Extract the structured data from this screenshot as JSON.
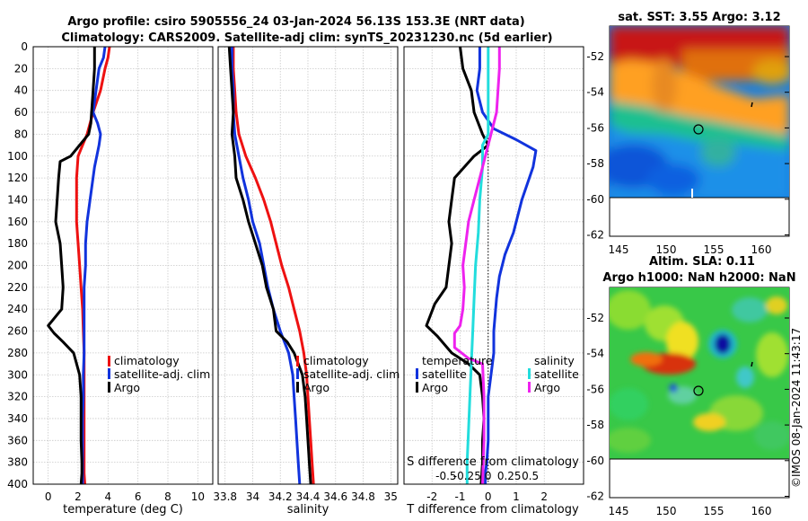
{
  "figure": {
    "title_line1": "Argo profile: csiro 5905556_24 03-Jan-2024 56.13S 153.3E (NRT data)",
    "title_line2": "Climatology: CARS2009. Satellite-adj clim: synTS_20231230.nc (5d earlier)",
    "credit": "©IMOS 08-Jan-2024 11:43:17"
  },
  "colors": {
    "climatology": "#ee1111",
    "satellite": "#1133dd",
    "argo": "#000000",
    "sal_satellite": "#22dddd",
    "sal_argo": "#ee22ee"
  },
  "chart_data": [
    {
      "type": "line",
      "id": "temperature",
      "xlabel": "temperature (deg C)",
      "ylabel": "",
      "xlim": [
        -1,
        11
      ],
      "ylim": [
        400,
        0
      ],
      "xticks": [
        "0",
        "2",
        "4",
        "6",
        "8",
        "10"
      ],
      "yticks": [
        "0",
        "20",
        "40",
        "60",
        "80",
        "100",
        "120",
        "140",
        "160",
        "180",
        "200",
        "220",
        "240",
        "260",
        "280",
        "300",
        "320",
        "340",
        "360",
        "380",
        "400"
      ],
      "legend": [
        "climatology",
        "satellite-adj. clim",
        "Argo"
      ],
      "series": [
        {
          "name": "climatology",
          "color": "#ee1111",
          "x": [
            4.1,
            4.0,
            3.8,
            3.5,
            3.0,
            2.6,
            2.3,
            2.0,
            1.9,
            1.9,
            1.9,
            2.0,
            2.1,
            2.2,
            2.3,
            2.35,
            2.4,
            2.4,
            2.4,
            2.4,
            2.4,
            2.4,
            2.4,
            2.45
          ],
          "y": [
            0,
            10,
            20,
            40,
            60,
            80,
            90,
            100,
            120,
            140,
            160,
            180,
            200,
            220,
            240,
            260,
            280,
            300,
            320,
            340,
            360,
            380,
            390,
            400
          ]
        },
        {
          "name": "satellite-adj. clim",
          "color": "#1133dd",
          "x": [
            3.8,
            3.7,
            3.4,
            3.2,
            3.0,
            3.3,
            3.5,
            3.4,
            3.1,
            2.8,
            2.6,
            2.5,
            2.5,
            2.4,
            2.4,
            2.4,
            2.4,
            2.35,
            2.35,
            2.3,
            2.3,
            2.3,
            2.3,
            2.3
          ],
          "y": [
            0,
            10,
            20,
            40,
            60,
            70,
            80,
            90,
            110,
            140,
            160,
            180,
            200,
            220,
            240,
            260,
            280,
            300,
            320,
            340,
            360,
            380,
            390,
            400
          ]
        },
        {
          "name": "Argo",
          "color": "#000000",
          "x": [
            3.1,
            3.1,
            3.0,
            2.9,
            2.85,
            2.7,
            2.4,
            2.1,
            1.5,
            0.8,
            0.7,
            0.6,
            0.5,
            0.8,
            0.9,
            1.0,
            0.9,
            0.3,
            0.0,
            0.4,
            1.0,
            1.7,
            2.1,
            2.2,
            2.2,
            2.2,
            2.25,
            2.25,
            2.2
          ],
          "y": [
            0,
            20,
            40,
            60,
            70,
            80,
            85,
            90,
            100,
            105,
            120,
            140,
            160,
            180,
            200,
            220,
            240,
            250,
            255,
            262,
            270,
            280,
            300,
            320,
            340,
            360,
            380,
            390,
            400
          ]
        }
      ]
    },
    {
      "type": "line",
      "id": "salinity",
      "xlabel": "salinity",
      "ylabel": "",
      "xlim": [
        33.75,
        35.05
      ],
      "xticks": [
        "33.8",
        "34",
        "34.2",
        "34.4",
        "34.6",
        "34.8",
        "35"
      ],
      "legend": [
        "climatology",
        "satellite-adj. clim",
        "Argo"
      ],
      "series": [
        {
          "name": "climatology",
          "color": "#ee1111",
          "x": [
            33.86,
            33.86,
            33.87,
            33.88,
            33.9,
            33.95,
            34.02,
            34.08,
            34.13,
            34.17,
            34.21,
            34.26,
            34.3,
            34.34,
            34.37,
            34.39,
            34.4,
            34.41,
            34.42,
            34.43,
            34.44
          ],
          "y": [
            0,
            20,
            40,
            60,
            80,
            100,
            120,
            140,
            160,
            180,
            200,
            220,
            240,
            260,
            280,
            300,
            320,
            340,
            360,
            380,
            400
          ]
        },
        {
          "name": "satellite-adj. clim",
          "color": "#1133dd",
          "x": [
            33.85,
            33.85,
            33.86,
            33.86,
            33.87,
            33.9,
            33.93,
            33.97,
            34.0,
            34.05,
            34.08,
            34.11,
            34.15,
            34.2,
            34.26,
            34.29,
            34.3,
            34.31,
            34.32,
            34.33,
            34.34
          ],
          "y": [
            0,
            20,
            40,
            60,
            80,
            100,
            120,
            140,
            160,
            180,
            200,
            220,
            240,
            260,
            280,
            300,
            320,
            340,
            360,
            380,
            400
          ]
        },
        {
          "name": "Argo",
          "color": "#000000",
          "x": [
            33.83,
            33.84,
            33.85,
            33.86,
            33.85,
            33.87,
            33.88,
            33.93,
            33.97,
            34.02,
            34.07,
            34.1,
            34.15,
            34.17,
            34.25,
            34.3,
            34.36,
            34.38,
            34.39,
            34.4,
            34.41,
            34.42
          ],
          "y": [
            0,
            20,
            40,
            60,
            80,
            100,
            120,
            140,
            160,
            180,
            200,
            220,
            240,
            260,
            270,
            280,
            300,
            320,
            340,
            360,
            380,
            400
          ]
        }
      ]
    },
    {
      "type": "line",
      "id": "difference",
      "xlabel": "T difference from climatology",
      "x2label": "S difference from climatology",
      "xlim": [
        -3,
        3.4
      ],
      "xticks": [
        "-2",
        "-1",
        "0",
        "1",
        "2"
      ],
      "x2ticks": [
        "-0.5",
        "-0.25",
        "0",
        "0.25",
        "0.5"
      ],
      "legend_temperature_title": "temperature",
      "legend_salinity_title": "salinity",
      "legend_temperature": [
        "satellite",
        "Argo"
      ],
      "legend_salinity": [
        "satellite",
        "Argo"
      ],
      "series": [
        {
          "name": "T satellite",
          "color": "#1133dd",
          "x": [
            -0.3,
            -0.3,
            -0.4,
            -0.2,
            0.2,
            1.0,
            1.7,
            1.6,
            1.2,
            0.9,
            0.6,
            0.4,
            0.3,
            0.2,
            0.2,
            0.1,
            0.0,
            0.0,
            0.0,
            -0.05,
            -0.1,
            -0.1
          ],
          "y": [
            0,
            20,
            40,
            60,
            75,
            85,
            95,
            110,
            140,
            170,
            190,
            210,
            230,
            260,
            280,
            300,
            320,
            340,
            360,
            380,
            390,
            400
          ]
        },
        {
          "name": "T Argo",
          "color": "#000000",
          "x": [
            -1.0,
            -0.9,
            -0.6,
            -0.5,
            -0.2,
            0.0,
            -0.5,
            -1.2,
            -1.3,
            -1.4,
            -1.3,
            -1.4,
            -1.5,
            -1.9,
            -2.2,
            -1.8,
            -1.3,
            -0.7,
            -0.3,
            -0.2,
            -0.15,
            -0.2,
            -0.2,
            -0.25
          ],
          "y": [
            0,
            20,
            40,
            60,
            80,
            90,
            100,
            120,
            140,
            160,
            180,
            200,
            220,
            235,
            255,
            265,
            280,
            290,
            300,
            320,
            340,
            360,
            380,
            400
          ]
        },
        {
          "name": "S satellite",
          "color": "#22dddd",
          "x": [
            0.0,
            0.0,
            0.0,
            0.0,
            -0.2,
            -0.2,
            -0.3,
            -0.35,
            -0.45,
            -0.5,
            -0.55,
            -0.6,
            -0.65,
            -0.7,
            -0.75,
            -0.75
          ],
          "y": [
            0,
            40,
            60,
            80,
            90,
            110,
            140,
            170,
            200,
            230,
            260,
            290,
            320,
            350,
            380,
            400
          ]
        },
        {
          "name": "S Argo",
          "color": "#ee22ee",
          "x": [
            0.4,
            0.4,
            0.35,
            0.3,
            0.1,
            -0.1,
            -0.3,
            -0.5,
            -0.7,
            -0.8,
            -0.9,
            -0.85,
            -0.9,
            -1.0,
            -1.2,
            -1.2,
            -0.7,
            -0.2,
            -0.15,
            -0.15,
            -0.2
          ],
          "y": [
            0,
            20,
            40,
            60,
            80,
            100,
            120,
            140,
            160,
            180,
            200,
            220,
            240,
            255,
            262,
            275,
            285,
            290,
            320,
            360,
            400
          ]
        }
      ]
    }
  ],
  "maps": [
    {
      "id": "sst-map",
      "title": "sat. SST: 3.55 Argo: 3.12",
      "yticks": [
        "-52",
        "-54",
        "-56",
        "-58",
        "-60",
        "-62"
      ],
      "xticks": [
        "145",
        "150",
        "155",
        "160"
      ]
    },
    {
      "id": "sla-map",
      "title_line1": "Altim. SLA: 0.11",
      "title_line2": "Argo h1000: NaN h2000: NaN",
      "yticks": [
        "-52",
        "-54",
        "-56",
        "-58",
        "-60",
        "-62"
      ],
      "xticks": [
        "145",
        "150",
        "155",
        "160"
      ]
    }
  ]
}
